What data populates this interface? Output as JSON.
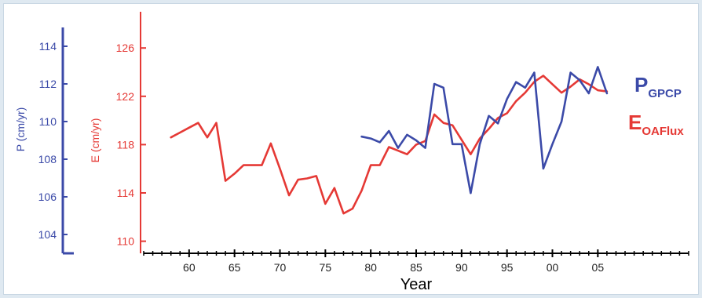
{
  "chart_data": {
    "type": "line",
    "xlabel": "Year",
    "x_ticks": [
      {
        "value": 1960,
        "label": "60"
      },
      {
        "value": 1965,
        "label": "65"
      },
      {
        "value": 1970,
        "label": "70"
      },
      {
        "value": 1975,
        "label": "75"
      },
      {
        "value": 1980,
        "label": "80"
      },
      {
        "value": 1985,
        "label": "85"
      },
      {
        "value": 1990,
        "label": "90"
      },
      {
        "value": 1995,
        "label": "95"
      },
      {
        "value": 2000,
        "label": "00"
      },
      {
        "value": 2005,
        "label": "05"
      }
    ],
    "xlim": [
      1955,
      2015
    ],
    "axes": {
      "P": {
        "label": "P (cm/yr)",
        "ticks": [
          104,
          106,
          108,
          110,
          112,
          114
        ],
        "range": [
          103,
          115
        ],
        "color": "#3b4aa8"
      },
      "E": {
        "label": "E (cm/yr)",
        "ticks": [
          110,
          114,
          118,
          122,
          126
        ],
        "range": [
          109,
          129
        ],
        "color": "#e53935"
      }
    },
    "series": [
      {
        "key": "E",
        "label_main": "E",
        "label_sub": "OAFlux",
        "color": "#e53935",
        "axis": "E",
        "x": [
          1958,
          1959,
          1960,
          1961,
          1962,
          1963,
          1964,
          1965,
          1966,
          1967,
          1968,
          1969,
          1970,
          1971,
          1972,
          1973,
          1974,
          1975,
          1976,
          1977,
          1978,
          1979,
          1980,
          1981,
          1982,
          1983,
          1984,
          1985,
          1986,
          1987,
          1988,
          1989,
          1990,
          1991,
          1992,
          1993,
          1994,
          1995,
          1996,
          1997,
          1998,
          1999,
          2000,
          2001,
          2002,
          2003,
          2004,
          2005,
          2006
        ],
        "y": [
          118.6,
          119.0,
          119.4,
          119.8,
          118.6,
          119.8,
          115.0,
          115.6,
          116.3,
          116.3,
          116.3,
          118.1,
          116.0,
          113.8,
          115.1,
          115.2,
          115.4,
          113.1,
          114.4,
          112.3,
          112.7,
          114.2,
          116.3,
          116.3,
          117.8,
          117.5,
          117.2,
          118.0,
          118.3,
          120.5,
          119.8,
          119.6,
          118.4,
          117.2,
          118.5,
          119.3,
          120.2,
          120.6,
          121.6,
          122.3,
          123.2,
          123.7,
          123.0,
          122.3,
          122.8,
          123.4,
          123.0,
          122.5,
          122.4
        ]
      },
      {
        "key": "P",
        "label_main": "P",
        "label_sub": "GPCP",
        "color": "#3b4aa8",
        "axis": "P",
        "x": [
          1979,
          1980,
          1981,
          1982,
          1983,
          1984,
          1985,
          1986,
          1987,
          1988,
          1989,
          1990,
          1991,
          1992,
          1993,
          1994,
          1995,
          1996,
          1997,
          1998,
          1999,
          2000,
          2001,
          2002,
          2003,
          2004,
          2005,
          2006
        ],
        "y": [
          109.2,
          109.1,
          108.9,
          109.5,
          108.6,
          109.3,
          109.0,
          108.6,
          112.0,
          111.8,
          108.8,
          108.8,
          106.2,
          108.8,
          110.3,
          109.9,
          111.2,
          112.1,
          111.8,
          112.6,
          107.5,
          108.8,
          110.0,
          112.6,
          112.2,
          111.5,
          112.9,
          111.5
        ]
      }
    ]
  }
}
